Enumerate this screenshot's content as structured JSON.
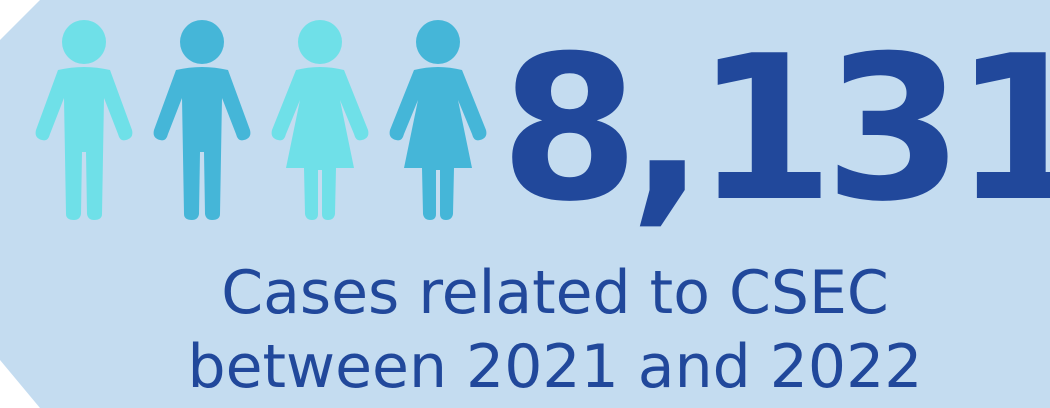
{
  "colors": {
    "background": "#c4dcf0",
    "accent_dark": "#21489b",
    "figure_light": "#6fe0e8",
    "figure_mid": "#45b6d8"
  },
  "icons": [
    "person-male-icon",
    "person-male-icon",
    "person-female-icon",
    "person-female-icon"
  ],
  "stat": {
    "value": "8,131",
    "caption_line1": "Cases related to CSEC",
    "caption_line2": "between 2021 and 2022"
  }
}
